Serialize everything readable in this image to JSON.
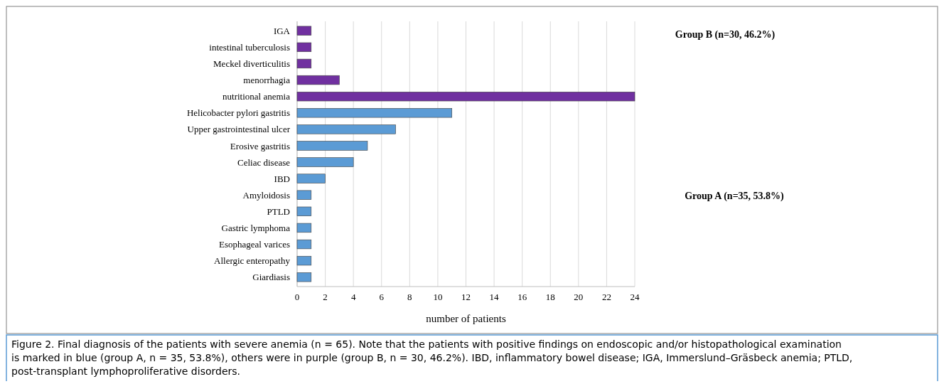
{
  "chart_data": {
    "type": "bar",
    "orientation": "horizontal",
    "categories": [
      "IGA",
      "intestinal tuberculosis",
      "Meckel diverticulitis",
      "menorrhagia",
      "nutritional anemia",
      "Helicobacter pylori gastritis",
      "Upper gastrointestinal ulcer",
      "Erosive gastritis",
      "Celiac disease",
      "IBD",
      "Amyloidosis",
      "PTLD",
      "Gastric lymphoma",
      "Esophageal varices",
      "Allergic enteropathy",
      "Giardiasis"
    ],
    "values": [
      1,
      1,
      1,
      3,
      24,
      11,
      7,
      5,
      4,
      2,
      1,
      1,
      1,
      1,
      1,
      1
    ],
    "colors": [
      "#7030a0",
      "#7030a0",
      "#7030a0",
      "#7030a0",
      "#7030a0",
      "#5b9bd5",
      "#5b9bd5",
      "#5b9bd5",
      "#5b9bd5",
      "#5b9bd5",
      "#5b9bd5",
      "#5b9bd5",
      "#5b9bd5",
      "#5b9bd5",
      "#5b9bd5",
      "#5b9bd5"
    ],
    "xlim": [
      0,
      24
    ],
    "xticks": [
      0,
      2,
      4,
      6,
      8,
      10,
      12,
      14,
      16,
      18,
      20,
      22,
      24
    ],
    "grid": "x",
    "xlabel": "number of patients",
    "annotations": [
      "Group B (n=30, 46.2%)",
      "Group A (n=35, 53.8%)",
      "Figure 2. Final diagnosis of the patients with severe anemia (n = 65). Note that the patients with positive findings on endoscopic and/or histopathological examination is marked in blue (group A, n = 35, 53.8%), others were in purple (group B, n = 30, 46.2%). IBD, inflammatory bowel disease; IGA, Immerslund–Gräsbeck anemia; PTLD, post-transplant lymphoproliferative disorders."
    ]
  }
}
